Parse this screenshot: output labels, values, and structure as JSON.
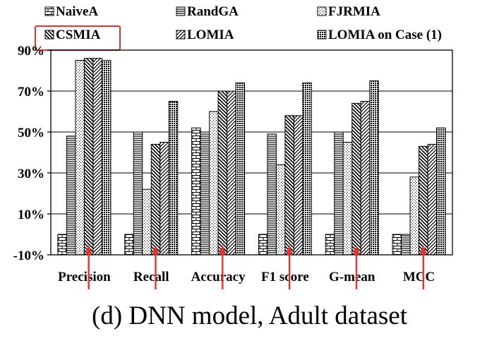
{
  "caption": "(d)  DNN model, Adult dataset",
  "chart_data": {
    "type": "bar",
    "categories": [
      "Precision",
      "Recall",
      "Accuracy",
      "F1 score",
      "G-mean",
      "MCC"
    ],
    "series": [
      {
        "name": "NaiveA",
        "pattern": "bricks",
        "values": [
          0,
          0,
          52,
          0,
          0,
          0
        ]
      },
      {
        "name": "RandGA",
        "pattern": "hlines",
        "values": [
          48,
          50,
          50,
          49,
          50,
          0
        ]
      },
      {
        "name": "FJRMIA",
        "pattern": "dots",
        "values": [
          85,
          22,
          60,
          34,
          45,
          28
        ]
      },
      {
        "name": "CSMIA",
        "pattern": "diag-back",
        "values": [
          86,
          44,
          70,
          58,
          64,
          43
        ]
      },
      {
        "name": "LOMIA",
        "pattern": "diag-fwd",
        "values": [
          86,
          45,
          70,
          58,
          65,
          44
        ]
      },
      {
        "name": "LOMIA on Case (1)",
        "pattern": "dense",
        "values": [
          85,
          65,
          74,
          74,
          75,
          52
        ]
      }
    ],
    "ylim": [
      -10,
      90
    ],
    "yticks": [
      "-10%",
      "10%",
      "30%",
      "50%",
      "70%",
      "90%"
    ],
    "ytick_values": [
      -10,
      10,
      30,
      50,
      70,
      90
    ],
    "grid": true,
    "legend_placement": "top",
    "highlighted_legend_entry": "CSMIA",
    "highlight_color": "#e8322d",
    "arrow_color": "#e8322d"
  }
}
